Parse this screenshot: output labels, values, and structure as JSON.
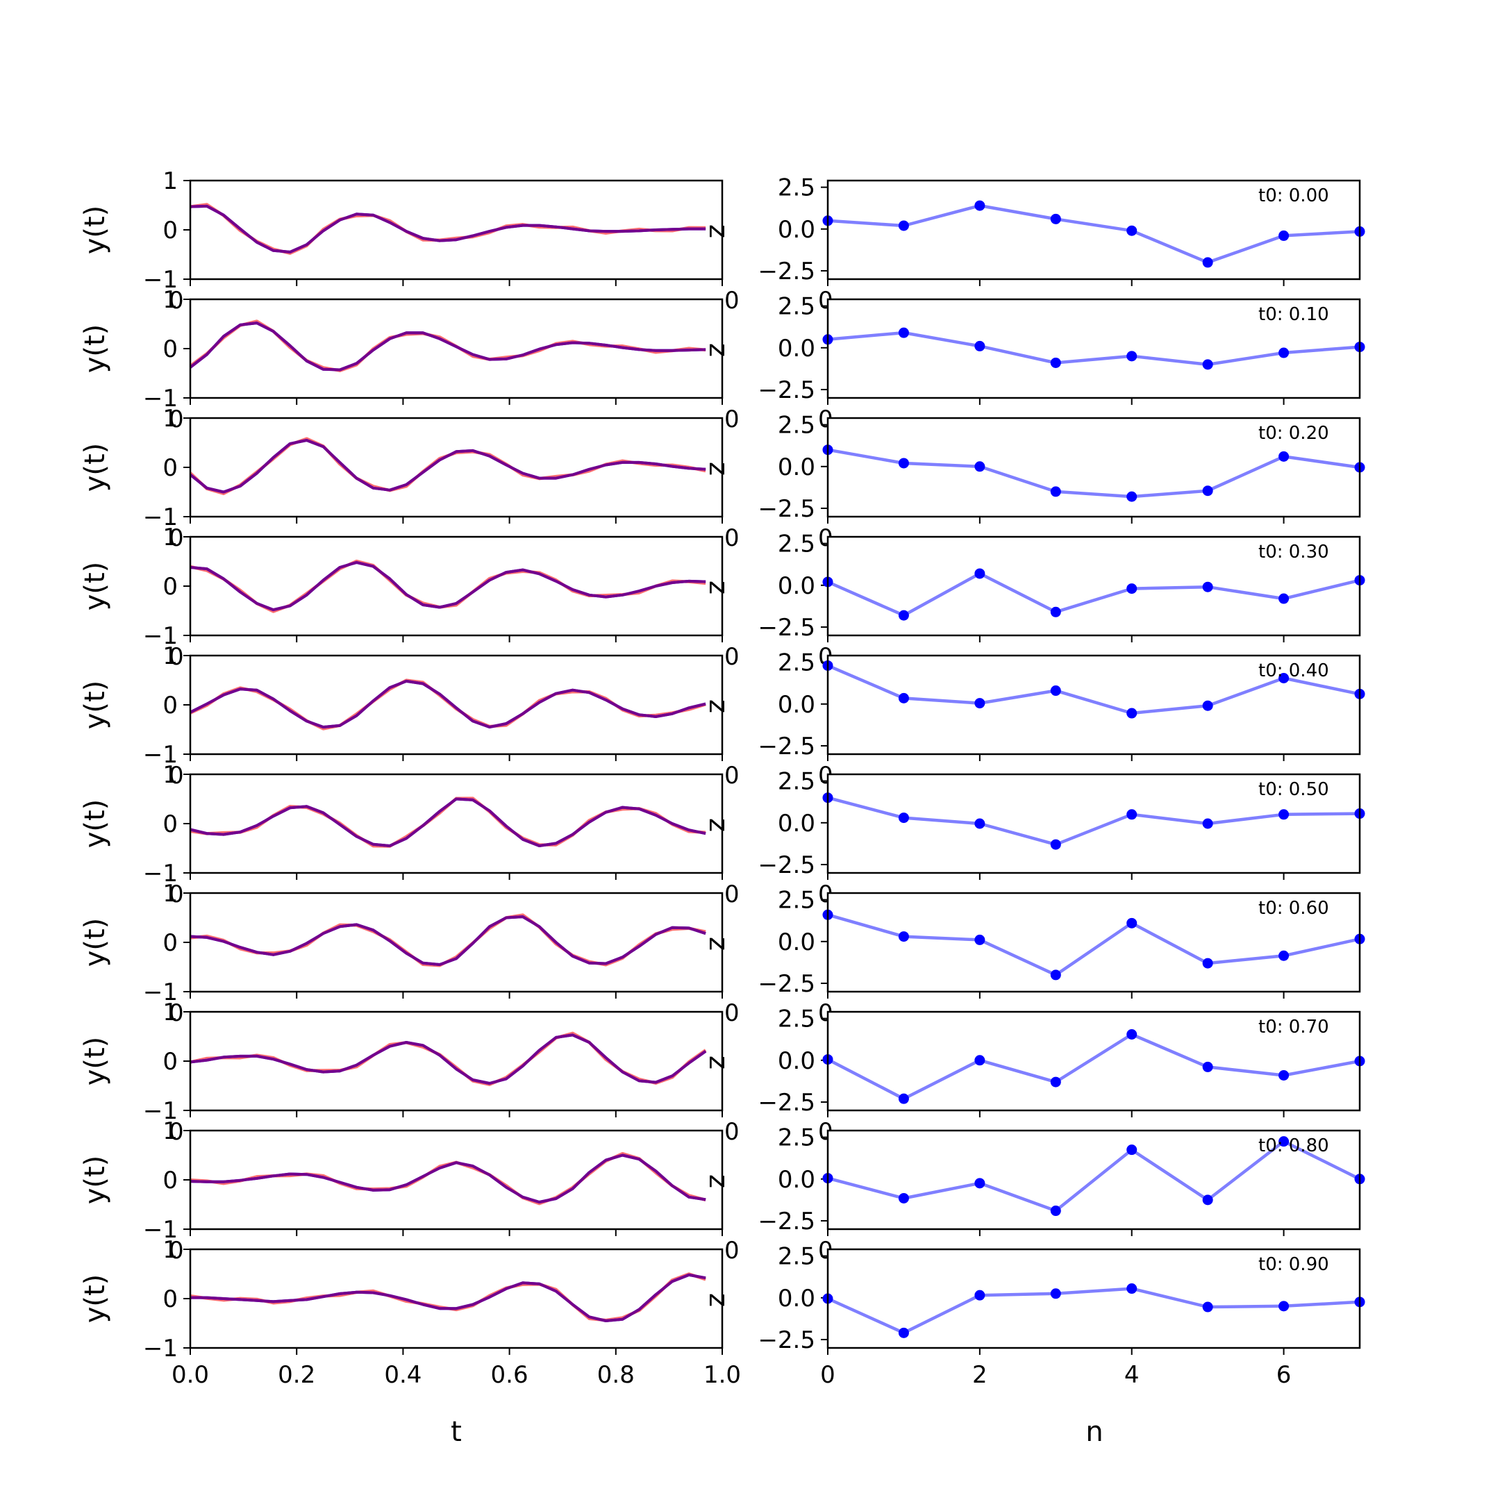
{
  "figure": {
    "left_xlabel": "t",
    "right_xlabel": "n",
    "left_ylabel": "y(t)",
    "right_side_label": "z",
    "colors": {
      "true_line": "#ff6f6f",
      "pred_line": "#0000ff",
      "overlay_line": "#800080",
      "coeff_line": "#7f7fff",
      "coeff_marker": "#0000ff"
    }
  },
  "chart_data": [
    {
      "type": "line",
      "panel": "left-waveforms",
      "xlabel": "t",
      "ylabel": "y(t)",
      "xlim": [
        0,
        1
      ],
      "ylim": [
        -1,
        1
      ],
      "xticks": [
        "0.0",
        "0.2",
        "0.4",
        "0.6",
        "0.8",
        "1.0"
      ],
      "yticks": [
        "-1",
        "0",
        "1"
      ],
      "x": [
        0.0,
        0.0312,
        0.0625,
        0.0938,
        0.125,
        0.1562,
        0.1875,
        0.2188,
        0.25,
        0.2812,
        0.3125,
        0.3438,
        0.375,
        0.4062,
        0.4375,
        0.4688,
        0.5,
        0.5312,
        0.5625,
        0.5938,
        0.625,
        0.6562,
        0.6875,
        0.7188,
        0.75,
        0.7812,
        0.8125,
        0.8438,
        0.875,
        0.9062,
        0.9375,
        0.9688
      ],
      "rows": [
        {
          "t0": "t0: 0.00",
          "y": [
            0.47,
            0.48,
            0.3,
            0.02,
            -0.25,
            -0.42,
            -0.45,
            -0.3,
            -0.02,
            0.2,
            0.32,
            0.3,
            0.15,
            -0.03,
            -0.17,
            -0.22,
            -0.2,
            -0.12,
            -0.03,
            0.05,
            0.09,
            0.09,
            0.06,
            0.02,
            -0.02,
            -0.03,
            -0.03,
            -0.02,
            0.0,
            0.01,
            0.02,
            0.02
          ]
        },
        {
          "t0": "t0: 0.10",
          "y": [
            -0.38,
            -0.12,
            0.25,
            0.48,
            0.52,
            0.35,
            0.06,
            -0.25,
            -0.42,
            -0.43,
            -0.3,
            -0.03,
            0.2,
            0.32,
            0.32,
            0.2,
            0.04,
            -0.12,
            -0.22,
            -0.21,
            -0.13,
            -0.01,
            0.08,
            0.12,
            0.11,
            0.07,
            0.02,
            -0.02,
            -0.04,
            -0.04,
            -0.03,
            -0.02
          ]
        },
        {
          "t0": "t0: 0.20",
          "y": [
            -0.15,
            -0.42,
            -0.5,
            -0.38,
            -0.12,
            0.2,
            0.48,
            0.55,
            0.42,
            0.1,
            -0.22,
            -0.42,
            -0.46,
            -0.35,
            -0.1,
            0.15,
            0.32,
            0.34,
            0.23,
            0.05,
            -0.12,
            -0.22,
            -0.22,
            -0.15,
            -0.04,
            0.05,
            0.1,
            0.1,
            0.07,
            0.02,
            -0.02,
            -0.04
          ]
        },
        {
          "t0": "t0: 0.30",
          "y": [
            0.38,
            0.35,
            0.15,
            -0.12,
            -0.35,
            -0.48,
            -0.4,
            -0.18,
            0.12,
            0.38,
            0.48,
            0.4,
            0.15,
            -0.17,
            -0.38,
            -0.43,
            -0.35,
            -0.12,
            0.12,
            0.28,
            0.33,
            0.25,
            0.1,
            -0.07,
            -0.18,
            -0.22,
            -0.18,
            -0.1,
            0.0,
            0.07,
            0.1,
            0.09
          ]
        },
        {
          "t0": "t0: 0.40",
          "y": [
            -0.15,
            0.02,
            0.2,
            0.32,
            0.3,
            0.12,
            -0.12,
            -0.33,
            -0.45,
            -0.42,
            -0.22,
            0.08,
            0.35,
            0.48,
            0.43,
            0.22,
            -0.06,
            -0.33,
            -0.45,
            -0.38,
            -0.18,
            0.05,
            0.23,
            0.3,
            0.25,
            0.1,
            -0.08,
            -0.2,
            -0.24,
            -0.18,
            -0.06,
            0.02
          ]
        },
        {
          "t0": "t0: 0.50",
          "y": [
            -0.12,
            -0.2,
            -0.22,
            -0.17,
            -0.04,
            0.15,
            0.32,
            0.35,
            0.22,
            -0.02,
            -0.26,
            -0.42,
            -0.45,
            -0.3,
            -0.04,
            0.25,
            0.5,
            0.48,
            0.26,
            -0.05,
            -0.32,
            -0.45,
            -0.4,
            -0.22,
            0.03,
            0.23,
            0.33,
            0.3,
            0.17,
            0.0,
            -0.13,
            -0.2
          ]
        },
        {
          "t0": "t0: 0.60",
          "y": [
            0.12,
            0.1,
            0.02,
            -0.1,
            -0.2,
            -0.25,
            -0.18,
            -0.02,
            0.18,
            0.32,
            0.36,
            0.25,
            0.03,
            -0.22,
            -0.42,
            -0.45,
            -0.33,
            -0.02,
            0.32,
            0.5,
            0.52,
            0.32,
            0.0,
            -0.28,
            -0.42,
            -0.43,
            -0.3,
            -0.08,
            0.16,
            0.3,
            0.29,
            0.18
          ]
        },
        {
          "t0": "t0: 0.70",
          "y": [
            -0.02,
            0.02,
            0.08,
            0.1,
            0.1,
            0.04,
            -0.06,
            -0.17,
            -0.22,
            -0.2,
            -0.08,
            0.12,
            0.3,
            0.38,
            0.32,
            0.12,
            -0.16,
            -0.38,
            -0.45,
            -0.36,
            -0.1,
            0.22,
            0.48,
            0.53,
            0.38,
            0.07,
            -0.22,
            -0.4,
            -0.43,
            -0.3,
            -0.04,
            0.2
          ]
        },
        {
          "t0": "t0: 0.80",
          "y": [
            -0.03,
            -0.04,
            -0.04,
            -0.01,
            0.03,
            0.08,
            0.12,
            0.11,
            0.05,
            -0.05,
            -0.15,
            -0.21,
            -0.2,
            -0.1,
            0.07,
            0.24,
            0.35,
            0.28,
            0.1,
            -0.15,
            -0.35,
            -0.45,
            -0.38,
            -0.18,
            0.15,
            0.4,
            0.5,
            0.42,
            0.18,
            -0.12,
            -0.35,
            -0.4
          ]
        },
        {
          "t0": "t0: 0.90",
          "y": [
            0.02,
            0.02,
            0.0,
            -0.02,
            -0.04,
            -0.06,
            -0.04,
            -0.02,
            0.04,
            0.1,
            0.13,
            0.12,
            0.06,
            -0.02,
            -0.12,
            -0.2,
            -0.2,
            -0.12,
            0.03,
            0.2,
            0.32,
            0.3,
            0.15,
            -0.12,
            -0.37,
            -0.45,
            -0.42,
            -0.22,
            0.08,
            0.35,
            0.48,
            0.42
          ]
        }
      ]
    },
    {
      "type": "line",
      "panel": "right-coefficients",
      "xlabel": "n",
      "xlim": [
        0,
        7
      ],
      "ylim": [
        -3.0,
        2.9
      ],
      "xticks": [
        "0",
        "2",
        "4",
        "6"
      ],
      "yticks": [
        "-2.5",
        "0.0",
        "2.5"
      ],
      "x": [
        0,
        1,
        2,
        3,
        4,
        5,
        6,
        7
      ],
      "rows": [
        {
          "t0": "t0: 0.00",
          "values": [
            0.5,
            0.2,
            1.4,
            0.6,
            -0.1,
            -2.0,
            -0.4,
            -0.15
          ]
        },
        {
          "t0": "t0: 0.10",
          "values": [
            0.5,
            0.9,
            0.1,
            -0.9,
            -0.5,
            -1.0,
            -0.3,
            0.05
          ]
        },
        {
          "t0": "t0: 0.20",
          "values": [
            1.0,
            0.2,
            0.0,
            -1.5,
            -1.8,
            -1.45,
            0.6,
            -0.05
          ]
        },
        {
          "t0": "t0: 0.30",
          "values": [
            0.2,
            -1.8,
            0.7,
            -1.6,
            -0.2,
            -0.1,
            -0.8,
            0.3
          ]
        },
        {
          "t0": "t0: 0.40",
          "values": [
            2.3,
            0.35,
            0.05,
            0.8,
            -0.55,
            -0.1,
            1.55,
            0.6
          ]
        },
        {
          "t0": "t0: 0.50",
          "values": [
            1.5,
            0.3,
            -0.05,
            -1.3,
            0.5,
            -0.05,
            0.5,
            0.55
          ]
        },
        {
          "t0": "t0: 0.60",
          "values": [
            1.6,
            0.3,
            0.1,
            -2.0,
            1.1,
            -1.3,
            -0.85,
            0.15
          ]
        },
        {
          "t0": "t0: 0.70",
          "values": [
            0.05,
            -2.3,
            0.0,
            -1.3,
            1.55,
            -0.4,
            -0.9,
            -0.05
          ]
        },
        {
          "t0": "t0: 0.80",
          "values": [
            0.05,
            -1.15,
            -0.25,
            -1.9,
            1.75,
            -1.25,
            2.25,
            0.0
          ]
        },
        {
          "t0": "t0: 0.90",
          "values": [
            -0.05,
            -2.1,
            0.15,
            0.25,
            0.55,
            -0.55,
            -0.5,
            -0.25
          ]
        }
      ]
    }
  ]
}
